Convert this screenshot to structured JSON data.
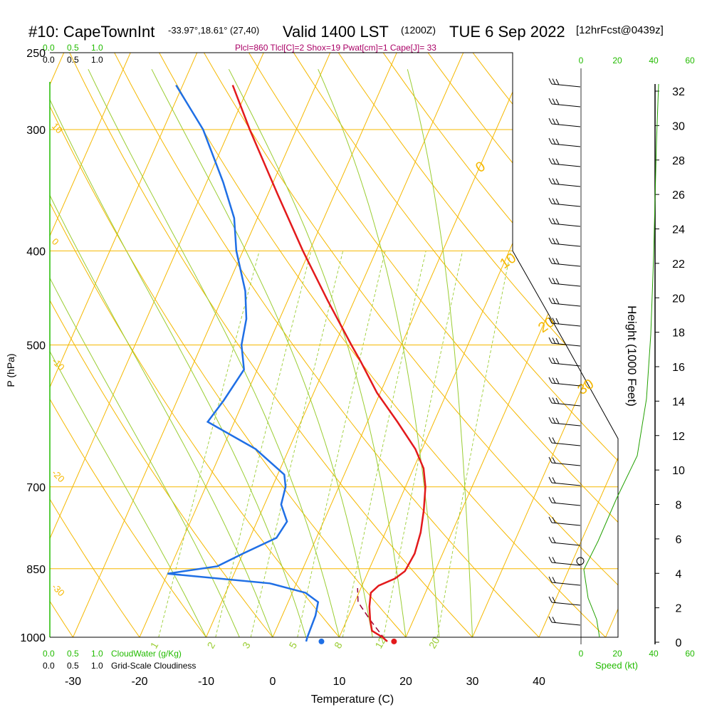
{
  "header": {
    "station": "#10: CapeTownInt",
    "coords": "-33.97°,18.61° (27,40)",
    "valid": "Valid 1400 LST",
    "zulu": "(1200Z)",
    "date": "TUE 6 Sep 2022",
    "forecast": "[12hrFcst@0439z]",
    "indices": "Plcl=860 Tlcl[C]=2 Shox=19 Pwat[cm]=1 Cape[J]= 33"
  },
  "colors": {
    "temperature": "#e31a1c",
    "dewpoint": "#1f6fe5",
    "parcel": "#990033",
    "isotherm": "#f5b800",
    "dry_adiabat": "#f5b800",
    "moist_adiabat": "#9acd32",
    "mixing_ratio": "#9acd32",
    "green_label": "#22bb00",
    "indices_text": "#aa0066"
  },
  "chart_data": {
    "type": "skew-t log-p sounding",
    "xlabel": "Temperature (C)",
    "ylabel": "P (hPa)",
    "right_axis_label": "Height (1000 Feet)",
    "x_ticks": [
      -30,
      -20,
      -10,
      0,
      10,
      20,
      30,
      40
    ],
    "pressure_levels": [
      250,
      300,
      400,
      500,
      700,
      850,
      1000
    ],
    "height_ticks_kft": [
      0,
      2,
      4,
      6,
      8,
      10,
      12,
      14,
      16,
      18,
      20,
      22,
      24,
      26,
      28,
      30,
      32
    ],
    "temperature": [
      {
        "p": 1010,
        "t": 17.5
      },
      {
        "p": 1000,
        "t": 16.5
      },
      {
        "p": 985,
        "t": 14.5
      },
      {
        "p": 960,
        "t": 13.5
      },
      {
        "p": 930,
        "t": 12.5
      },
      {
        "p": 900,
        "t": 11.8
      },
      {
        "p": 885,
        "t": 12.5
      },
      {
        "p": 870,
        "t": 14.5
      },
      {
        "p": 855,
        "t": 15.5
      },
      {
        "p": 820,
        "t": 15.8
      },
      {
        "p": 780,
        "t": 15.3
      },
      {
        "p": 740,
        "t": 14.3
      },
      {
        "p": 700,
        "t": 13.0
      },
      {
        "p": 670,
        "t": 11.5
      },
      {
        "p": 640,
        "t": 9.0
      },
      {
        "p": 600,
        "t": 4.5
      },
      {
        "p": 560,
        "t": -0.5
      },
      {
        "p": 520,
        "t": -5.0
      },
      {
        "p": 500,
        "t": -7.5
      },
      {
        "p": 450,
        "t": -14.0
      },
      {
        "p": 400,
        "t": -21.0
      },
      {
        "p": 350,
        "t": -28.5
      },
      {
        "p": 300,
        "t": -37.0
      },
      {
        "p": 270,
        "t": -42.5
      }
    ],
    "dewpoint": [
      {
        "p": 1010,
        "t": 5.3
      },
      {
        "p": 1000,
        "t": 5.2
      },
      {
        "p": 950,
        "t": 5.0
      },
      {
        "p": 920,
        "t": 4.5
      },
      {
        "p": 900,
        "t": 2.0
      },
      {
        "p": 880,
        "t": -4.0
      },
      {
        "p": 860,
        "t": -20.0
      },
      {
        "p": 845,
        "t": -13.0
      },
      {
        "p": 820,
        "t": -10.0
      },
      {
        "p": 790,
        "t": -6.0
      },
      {
        "p": 760,
        "t": -5.5
      },
      {
        "p": 730,
        "t": -7.5
      },
      {
        "p": 700,
        "t": -8.0
      },
      {
        "p": 680,
        "t": -9.0
      },
      {
        "p": 640,
        "t": -15.0
      },
      {
        "p": 600,
        "t": -24.0
      },
      {
        "p": 570,
        "t": -23.0
      },
      {
        "p": 530,
        "t": -22.0
      },
      {
        "p": 500,
        "t": -24.0
      },
      {
        "p": 470,
        "t": -25.0
      },
      {
        "p": 440,
        "t": -27.0
      },
      {
        "p": 400,
        "t": -31.0
      },
      {
        "p": 370,
        "t": -33.5
      },
      {
        "p": 340,
        "t": -37.5
      },
      {
        "p": 300,
        "t": -44.0
      },
      {
        "p": 270,
        "t": -51.0
      }
    ],
    "parcel": [
      {
        "p": 1005,
        "t": 17.0
      },
      {
        "p": 960,
        "t": 13.5
      },
      {
        "p": 920,
        "t": 10.5
      },
      {
        "p": 890,
        "t": 9.5
      }
    ],
    "surface_temperature": 18.5,
    "surface_dewpoint": 7.6,
    "isotherm_labels": [
      0,
      10,
      20,
      30
    ],
    "dry_adiabat_labels": [
      10,
      0,
      -10,
      -20,
      -30
    ],
    "mixing_ratio_labels": [
      1,
      2,
      3,
      5,
      8,
      12,
      20
    ],
    "cloud_scale_labels": [
      "0.0",
      "0.5",
      "1.0"
    ],
    "cloud_water_label": "CloudWater (g/Kg)",
    "cloudiness_label": "Grid-Scale Cloudiness",
    "speed_label": "Speed (kt)",
    "speed_ticks": [
      0,
      20,
      40,
      60
    ]
  }
}
